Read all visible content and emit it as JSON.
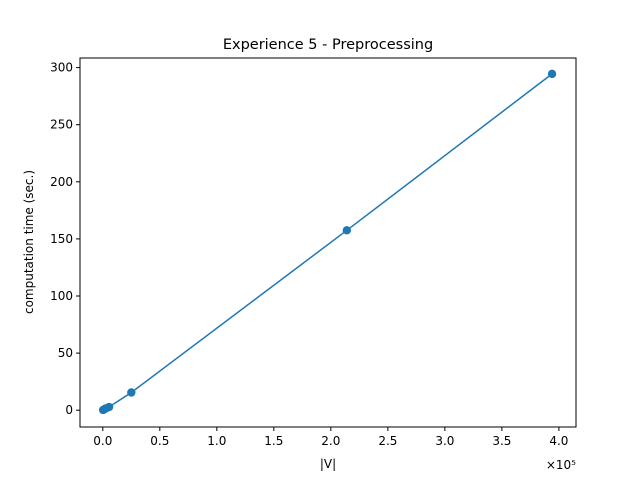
{
  "chart_data": {
    "type": "line",
    "title": "Experience 5 - Preprocessing",
    "xlabel": "|V|",
    "ylabel": "computation time (sec.)",
    "x_offset_label": "×10⁵",
    "xlim": [
      -0.2,
      4.15
    ],
    "ylim": [
      -14.7,
      308.4
    ],
    "x_ticks": [
      0.0,
      0.5,
      1.0,
      1.5,
      2.0,
      2.5,
      3.0,
      3.5,
      4.0
    ],
    "x_tick_labels": [
      "0.0",
      "0.5",
      "1.0",
      "1.5",
      "2.0",
      "2.5",
      "3.0",
      "3.5",
      "4.0"
    ],
    "y_ticks": [
      0,
      50,
      100,
      150,
      200,
      250,
      300
    ],
    "y_tick_labels": [
      "0",
      "50",
      "100",
      "150",
      "200",
      "250",
      "300"
    ],
    "grid": false,
    "series": [
      {
        "color": "#1f77b4",
        "marker": "circle",
        "x": [
          0.003,
          0.012,
          0.025,
          0.055,
          0.25,
          2.14,
          3.94
        ],
        "y": [
          0.2,
          0.8,
          1.5,
          2.8,
          15.5,
          157.5,
          294.5
        ]
      }
    ]
  }
}
